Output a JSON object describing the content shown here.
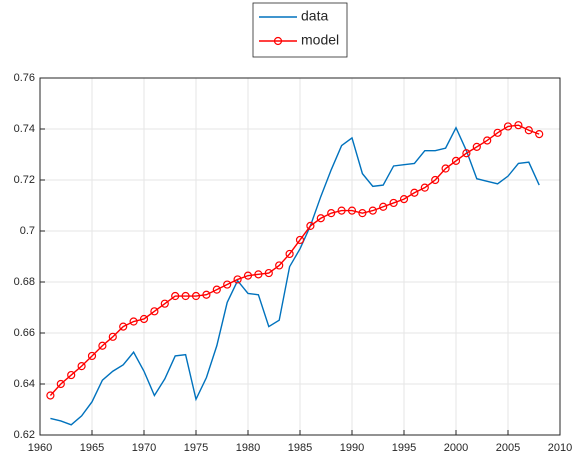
{
  "chart_data": {
    "type": "line",
    "x": [
      1961,
      1962,
      1963,
      1964,
      1965,
      1966,
      1967,
      1968,
      1969,
      1970,
      1971,
      1972,
      1973,
      1974,
      1975,
      1976,
      1977,
      1978,
      1979,
      1980,
      1981,
      1982,
      1983,
      1984,
      1985,
      1986,
      1987,
      1988,
      1989,
      1990,
      1991,
      1992,
      1993,
      1994,
      1995,
      1996,
      1997,
      1998,
      1999,
      2000,
      2001,
      2002,
      2003,
      2004,
      2005,
      2006,
      2007,
      2008
    ],
    "series": [
      {
        "name": "data",
        "color": "#0072bd",
        "marker": "none",
        "values": [
          0.6265,
          0.6255,
          0.624,
          0.6275,
          0.633,
          0.6415,
          0.645,
          0.6475,
          0.6525,
          0.645,
          0.6355,
          0.642,
          0.651,
          0.6515,
          0.634,
          0.6425,
          0.655,
          0.672,
          0.6805,
          0.6755,
          0.675,
          0.6625,
          0.665,
          0.686,
          0.693,
          0.702,
          0.7135,
          0.724,
          0.7335,
          0.7365,
          0.7225,
          0.7175,
          0.718,
          0.7255,
          0.726,
          0.7265,
          0.7315,
          0.7315,
          0.7325,
          0.7405,
          0.7315,
          0.7205,
          0.7195,
          0.7185,
          0.7215,
          0.7265,
          0.727,
          0.718
        ]
      },
      {
        "name": "model",
        "color": "#ff0000",
        "marker": "circle",
        "values": [
          0.6355,
          0.64,
          0.6435,
          0.647,
          0.651,
          0.655,
          0.6585,
          0.6625,
          0.6645,
          0.6655,
          0.6685,
          0.6715,
          0.6745,
          0.6745,
          0.6745,
          0.675,
          0.677,
          0.679,
          0.681,
          0.6825,
          0.683,
          0.6835,
          0.6865,
          0.691,
          0.6965,
          0.702,
          0.705,
          0.707,
          0.708,
          0.708,
          0.707,
          0.708,
          0.7095,
          0.711,
          0.7125,
          0.715,
          0.717,
          0.72,
          0.7245,
          0.7275,
          0.7305,
          0.733,
          0.7355,
          0.7385,
          0.741,
          0.7415,
          0.7395,
          0.738
        ]
      }
    ],
    "xlim": [
      1960,
      2010
    ],
    "xticks": [
      1960,
      1965,
      1970,
      1975,
      1980,
      1985,
      1990,
      1995,
      2000,
      2005,
      2010
    ],
    "ylim": [
      0.62,
      0.76
    ],
    "yticks": [
      0.62,
      0.64,
      0.66,
      0.68,
      0.7,
      0.72,
      0.74,
      0.76
    ],
    "grid": true,
    "legend": "top"
  }
}
